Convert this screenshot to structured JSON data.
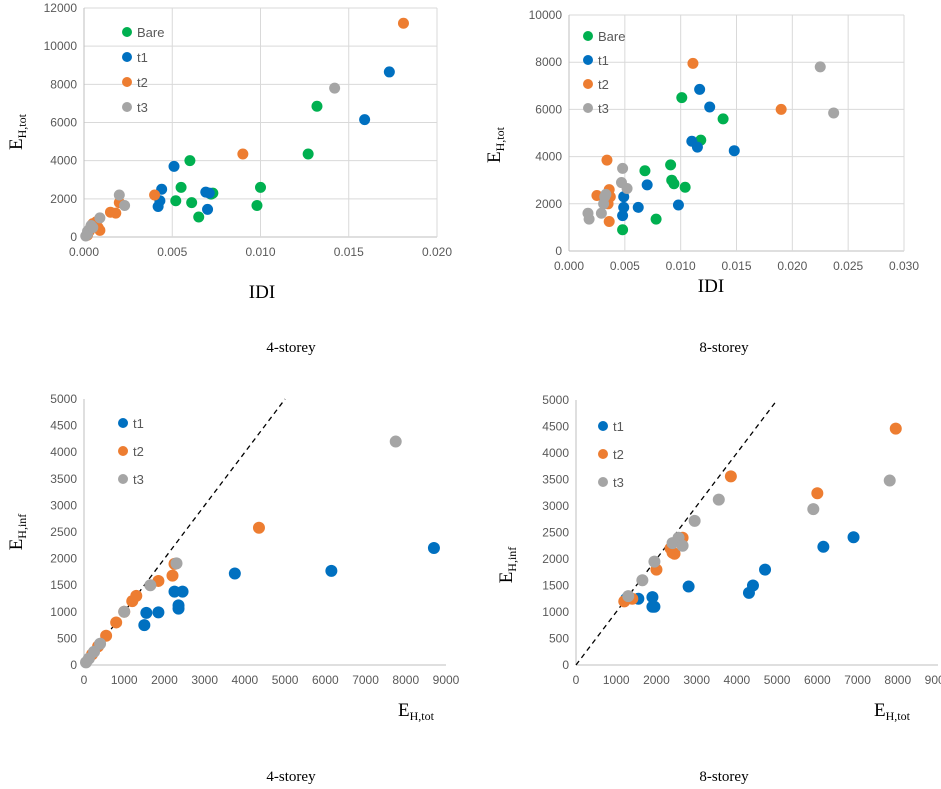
{
  "colors": {
    "Bare": "#00b050",
    "t1": "#0070c0",
    "t2": "#ed7d31",
    "t3": "#a5a5a5"
  },
  "chart_data": [
    {
      "type": "scatter",
      "caption": "4-storey",
      "xlabel": "IDI",
      "ylabel_main": "E",
      "ylabel_sub": "H,tot",
      "xlim": [
        0,
        0.02
      ],
      "ylim": [
        0,
        12000
      ],
      "x_ticks": [
        "0.000",
        "0.005",
        "0.010",
        "0.015",
        "0.020"
      ],
      "y_ticks": [
        "0",
        "2000",
        "4000",
        "6000",
        "8000",
        "10000",
        "12000"
      ],
      "grid": true,
      "legend_position": "top-left",
      "series": [
        {
          "name": "Bare",
          "x": [
            0.0052,
            0.0055,
            0.006,
            0.0065,
            0.0061,
            0.0072,
            0.0073,
            0.0098,
            0.01,
            0.0127,
            0.0132
          ],
          "y": [
            1900,
            2600,
            4000,
            1050,
            1800,
            2250,
            2300,
            1650,
            2600,
            4350,
            6850
          ]
        },
        {
          "name": "t1",
          "x": [
            0.0042,
            0.0043,
            0.0044,
            0.0051,
            0.0069,
            0.0071,
            0.007,
            0.0159,
            0.0173
          ],
          "y": [
            1600,
            1900,
            2500,
            3700,
            2350,
            2300,
            1450,
            6150,
            8650
          ]
        },
        {
          "name": "t2",
          "x": [
            0.0002,
            0.0003,
            0.0004,
            0.0005,
            0.0007,
            0.0008,
            0.0009,
            0.0015,
            0.0018,
            0.002,
            0.004,
            0.009,
            0.0181
          ],
          "y": [
            100,
            300,
            550,
            700,
            800,
            500,
            350,
            1300,
            1250,
            1800,
            2200,
            4350,
            11200
          ]
        },
        {
          "name": "t3",
          "x": [
            0.0001,
            0.0002,
            0.0002,
            0.0003,
            0.0004,
            0.0005,
            0.0009,
            0.002,
            0.0023,
            0.0142
          ],
          "y": [
            50,
            150,
            300,
            400,
            600,
            500,
            1000,
            2200,
            1650,
            7800
          ]
        }
      ]
    },
    {
      "type": "scatter",
      "caption": "8-storey",
      "xlabel": "IDI",
      "ylabel_main": "E",
      "ylabel_sub": "H,tot",
      "xlim": [
        0,
        0.03
      ],
      "ylim": [
        0,
        10000
      ],
      "x_ticks": [
        "0.000",
        "0.005",
        "0.010",
        "0.015",
        "0.020",
        "0.025",
        "0.030"
      ],
      "y_ticks": [
        "0",
        "2000",
        "4000",
        "6000",
        "8000",
        "10000"
      ],
      "grid": true,
      "legend_position": "top-left",
      "series": [
        {
          "name": "Bare",
          "x": [
            0.0048,
            0.0068,
            0.0078,
            0.0091,
            0.0092,
            0.0094,
            0.0101,
            0.0104,
            0.0118,
            0.0138
          ],
          "y": [
            900,
            3400,
            1350,
            3650,
            3000,
            2850,
            6500,
            2700,
            4700,
            5600
          ]
        },
        {
          "name": "t1",
          "x": [
            0.0048,
            0.0049,
            0.0049,
            0.0062,
            0.007,
            0.0098,
            0.011,
            0.0115,
            0.0117,
            0.0126,
            0.0148
          ],
          "y": [
            1500,
            1850,
            2300,
            1850,
            2800,
            1950,
            4650,
            4400,
            6850,
            6100,
            4250
          ]
        },
        {
          "name": "t2",
          "x": [
            0.0025,
            0.0033,
            0.0034,
            0.0035,
            0.0036,
            0.0036,
            0.0037,
            0.0111,
            0.019
          ],
          "y": [
            2350,
            2350,
            3850,
            2000,
            1250,
            2600,
            2300,
            7950,
            6000
          ]
        },
        {
          "name": "t3",
          "x": [
            0.0017,
            0.0018,
            0.0029,
            0.0031,
            0.0032,
            0.0033,
            0.0047,
            0.0048,
            0.0052,
            0.0225,
            0.0237
          ],
          "y": [
            1600,
            1350,
            1600,
            2000,
            2300,
            2400,
            2900,
            3500,
            2650,
            7800,
            5850
          ]
        }
      ]
    },
    {
      "type": "scatter",
      "caption": "4-storey",
      "xlabel_main": "E",
      "xlabel_sub": "H,tot",
      "ylabel_main": "E",
      "ylabel_sub": "H,inf",
      "xlim": [
        0,
        9000
      ],
      "ylim": [
        0,
        5000
      ],
      "x_ticks": [
        "0",
        "1000",
        "2000",
        "3000",
        "4000",
        "5000",
        "6000",
        "7000",
        "8000",
        "9000"
      ],
      "y_ticks": [
        "0",
        "500",
        "1000",
        "1500",
        "2000",
        "2500",
        "3000",
        "3500",
        "4000",
        "4500",
        "5000"
      ],
      "grid": false,
      "reference_line": "y = x (dashed)",
      "legend_position": "top-left",
      "series": [
        {
          "name": "t1",
          "x": [
            1500,
            1550,
            1850,
            2250,
            2350,
            2350,
            2450,
            3750,
            6150,
            8700
          ],
          "y": [
            750,
            980,
            990,
            1380,
            1120,
            1060,
            1380,
            1720,
            1770,
            2200
          ]
        },
        {
          "name": "t2",
          "x": [
            200,
            350,
            550,
            800,
            1000,
            1200,
            1300,
            1850,
            2200,
            2250,
            4350
          ],
          "y": [
            200,
            350,
            550,
            800,
            1000,
            1200,
            1300,
            1580,
            1680,
            1900,
            2580
          ]
        },
        {
          "name": "t3",
          "x": [
            50,
            120,
            250,
            400,
            1000,
            1650,
            2300,
            7750
          ],
          "y": [
            50,
            120,
            250,
            400,
            1000,
            1500,
            1910,
            4200
          ]
        }
      ]
    },
    {
      "type": "scatter",
      "caption": "8-storey",
      "xlabel_main": "E",
      "xlabel_sub": "H,tot",
      "ylabel_main": "E",
      "ylabel_sub": "H,inf",
      "xlim": [
        0,
        9000
      ],
      "ylim": [
        0,
        5000
      ],
      "x_ticks": [
        "0",
        "1000",
        "2000",
        "3000",
        "4000",
        "5000",
        "6000",
        "7000",
        "8000",
        "9000"
      ],
      "y_ticks": [
        "0",
        "500",
        "1000",
        "1500",
        "2000",
        "2500",
        "3000",
        "3500",
        "4000",
        "4500",
        "5000"
      ],
      "grid": false,
      "reference_line": "y = x (dashed)",
      "legend_position": "top-left",
      "series": [
        {
          "name": "t1",
          "x": [
            1250,
            1550,
            1900,
            1900,
            1950,
            2800,
            4300,
            4400,
            4700,
            6150,
            6900
          ],
          "y": [
            1250,
            1250,
            1280,
            1100,
            1100,
            1480,
            1360,
            1500,
            1800,
            2230,
            2410
          ]
        },
        {
          "name": "t2",
          "x": [
            1200,
            1400,
            2000,
            2350,
            2400,
            2450,
            2650,
            3850,
            6000,
            7950
          ],
          "y": [
            1200,
            1250,
            1800,
            2200,
            2120,
            2100,
            2400,
            3560,
            3240,
            4460
          ]
        },
        {
          "name": "t3",
          "x": [
            1300,
            1650,
            1950,
            2400,
            2550,
            2650,
            2950,
            3550,
            5900,
            7800
          ],
          "y": [
            1300,
            1600,
            1950,
            2300,
            2400,
            2250,
            2720,
            3120,
            2940,
            3480
          ]
        }
      ]
    }
  ]
}
